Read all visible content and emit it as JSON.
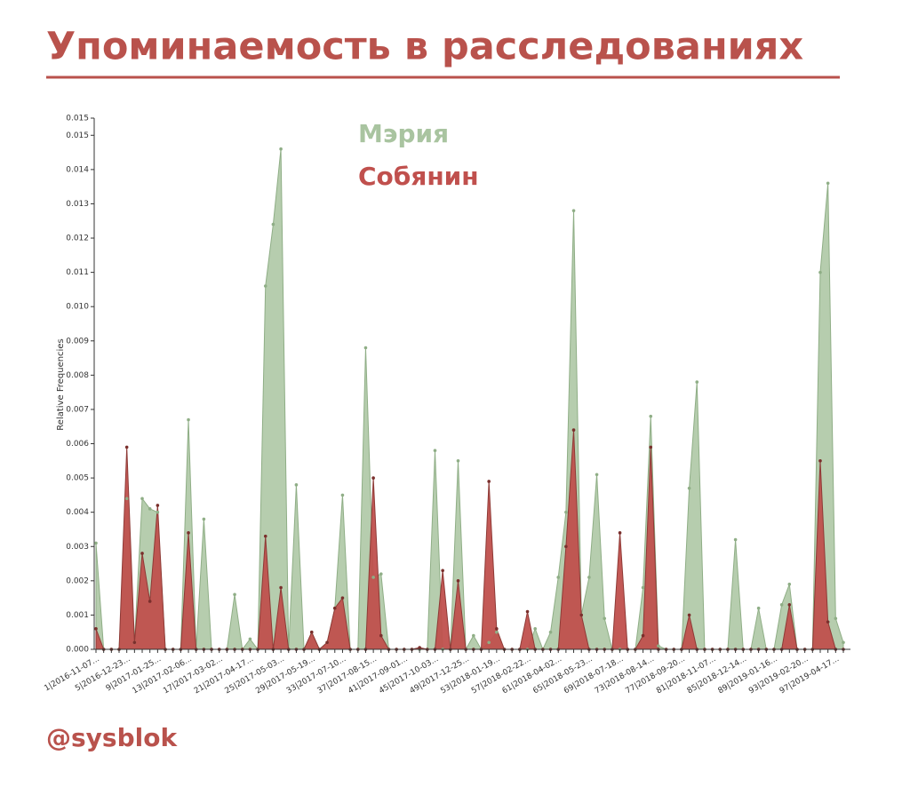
{
  "chart_data": {
    "type": "area",
    "title": "Упоминаемость в расследованиях",
    "y_label": "Relative Frequencies",
    "categories": [
      "1|2016-11-07...",
      null,
      null,
      null,
      "5|2016-12-23...",
      null,
      null,
      null,
      "9|2017-01-25...",
      null,
      null,
      null,
      "13|2017-02-06...",
      null,
      null,
      null,
      "17|2017-03-02...",
      null,
      null,
      null,
      "21|2017-04-17...",
      null,
      null,
      null,
      "25|2017-05-03...",
      null,
      null,
      null,
      "29|2017-05-19...",
      null,
      null,
      null,
      "33|2017-07-10...",
      null,
      null,
      null,
      "37|2017-08-15...",
      null,
      null,
      null,
      "41|2017-09-01...",
      null,
      null,
      null,
      "45|2017-10-03...",
      null,
      null,
      null,
      "49|2017-12-25...",
      null,
      null,
      null,
      "53|2018-01-19...",
      null,
      null,
      null,
      "57|2018-02-22...",
      null,
      null,
      null,
      "61|2018-04-02...",
      null,
      null,
      null,
      "65|2018-05-23...",
      null,
      null,
      null,
      "69|2018-07-18...",
      null,
      null,
      null,
      "73|2018-08-14...",
      null,
      null,
      null,
      "77|2018-09-20...",
      null,
      null,
      null,
      "81|2018-11-07...",
      null,
      null,
      null,
      "85|2018-12-14...",
      null,
      null,
      null,
      "89|2019-01-16...",
      null,
      null,
      null,
      "93|2019-02-20...",
      null,
      null,
      null,
      "97|2019-04-17...",
      null
    ],
    "series": [
      {
        "name": "Мэрия",
        "color": "#a9c4a0",
        "values": [
          0.0031,
          0,
          0,
          0,
          0.0044,
          0.0002,
          0.0044,
          0.0041,
          0.004,
          0,
          0,
          0,
          0.0067,
          0,
          0.0038,
          0,
          0,
          0,
          0.0016,
          0,
          0.0003,
          0,
          0.0106,
          0.0124,
          0.0146,
          0,
          0.0048,
          0,
          0.0005,
          0,
          0.0002,
          0.0012,
          0.0045,
          0,
          0,
          0.0088,
          0.0021,
          0.0022,
          0,
          0,
          0,
          0,
          0,
          0,
          0.0058,
          0,
          0,
          0.0055,
          0,
          0.0004,
          0,
          0.0002,
          0.0005,
          0,
          0,
          0,
          0,
          0.0006,
          0,
          0.0005,
          0.0021,
          0.004,
          0.0128,
          0.001,
          0.0021,
          0.0051,
          0.0009,
          0,
          0,
          0,
          0,
          0.0018,
          0.0068,
          0.0001,
          0,
          0,
          0,
          0.0047,
          0.0078,
          0,
          0,
          0,
          0,
          0.0032,
          0,
          0,
          0.0012,
          0,
          0,
          0.0013,
          0.0019,
          0,
          0,
          0,
          0.011,
          0.0136,
          0.0009,
          0.0002
        ]
      },
      {
        "name": "Собянин",
        "color": "#c0504d",
        "values": [
          0.0006,
          0,
          0,
          0,
          0.0059,
          0.0002,
          0.0028,
          0.0014,
          0.0042,
          0,
          0,
          0,
          0.0034,
          0,
          0,
          0,
          0,
          0,
          0,
          0,
          0,
          0,
          0.0033,
          0,
          0.0018,
          0,
          0,
          0,
          0.0005,
          0,
          0.0002,
          0.0012,
          0.0015,
          0,
          0,
          0,
          0.005,
          0.0004,
          0,
          0,
          0,
          0,
          5e-05,
          0,
          0,
          0.0023,
          0,
          0.002,
          0,
          0,
          0,
          0.0049,
          0.0006,
          0,
          0,
          0,
          0.0011,
          0,
          0,
          0,
          0,
          0.003,
          0.0064,
          0.001,
          0,
          0,
          0,
          0,
          0.0034,
          0,
          0,
          0.0004,
          0.0059,
          0,
          0,
          0,
          0,
          0.001,
          0,
          0,
          0,
          0,
          0,
          0,
          0,
          0,
          0,
          0,
          0,
          0,
          0.0013,
          0,
          0,
          0,
          0.0055,
          0.0008,
          0,
          0
        ]
      }
    ],
    "ylim": [
      0,
      0.0155
    ],
    "yticks": [
      {
        "value": 0,
        "label": "0.000"
      },
      {
        "value": 0.001,
        "label": "0.001"
      },
      {
        "value": 0.002,
        "label": "0.002"
      },
      {
        "value": 0.003,
        "label": "0.003"
      },
      {
        "value": 0.004,
        "label": "0.004"
      },
      {
        "value": 0.005,
        "label": "0.005"
      },
      {
        "value": 0.006,
        "label": "0.006"
      },
      {
        "value": 0.007,
        "label": "0.007"
      },
      {
        "value": 0.008,
        "label": "0.008"
      },
      {
        "value": 0.009,
        "label": "0.009"
      },
      {
        "value": 0.01,
        "label": "0.010"
      },
      {
        "value": 0.011,
        "label": "0.011"
      },
      {
        "value": 0.012,
        "label": "0.012"
      },
      {
        "value": 0.013,
        "label": "0.013"
      },
      {
        "value": 0.014,
        "label": "0.014"
      },
      {
        "value": 0.015,
        "label": "0.015"
      },
      {
        "value": 0.0155,
        "label": "0.015"
      }
    ]
  },
  "footer": "@sysblok"
}
